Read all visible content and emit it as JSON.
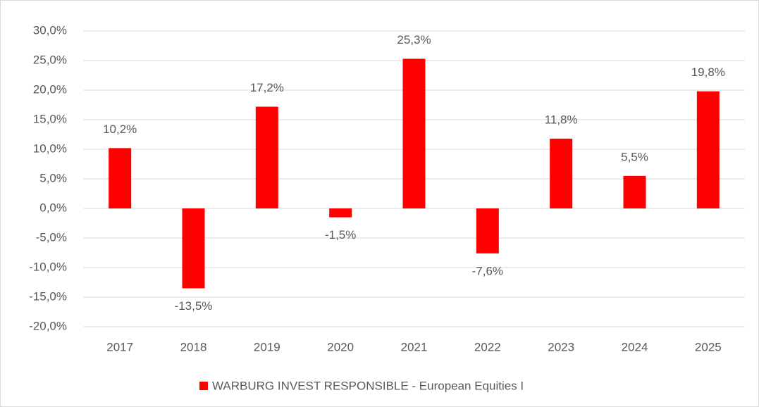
{
  "chart_data": {
    "type": "bar",
    "categories": [
      "2017",
      "2018",
      "2019",
      "2020",
      "2021",
      "2022",
      "2023",
      "2024",
      "2025"
    ],
    "series": [
      {
        "name": "WARBURG INVEST RESPONSIBLE - European Equities I",
        "color": "#ff0000",
        "values": [
          10.2,
          -13.5,
          17.2,
          -1.5,
          25.3,
          -7.6,
          11.8,
          5.5,
          19.8
        ],
        "value_labels": [
          "10,2%",
          "-13,5%",
          "17,2%",
          "-1,5%",
          "25,3%",
          "-7,6%",
          "11,8%",
          "5,5%",
          "19,8%"
        ]
      }
    ],
    "ylim": [
      -20,
      30
    ],
    "yticks": [
      {
        "value": -20,
        "label": "-20,0%"
      },
      {
        "value": -15,
        "label": "-15,0%"
      },
      {
        "value": -10,
        "label": "-10,0%"
      },
      {
        "value": -5,
        "label": "-5,0%"
      },
      {
        "value": 0,
        "label": "0,0%"
      },
      {
        "value": 5,
        "label": "5,0%"
      },
      {
        "value": 10,
        "label": "10,0%"
      },
      {
        "value": 15,
        "label": "15,0%"
      },
      {
        "value": 20,
        "label": "20,0%"
      },
      {
        "value": 25,
        "label": "25,0%"
      },
      {
        "value": 30,
        "label": "30,0%"
      }
    ],
    "grid": true,
    "legend": "bottom"
  }
}
